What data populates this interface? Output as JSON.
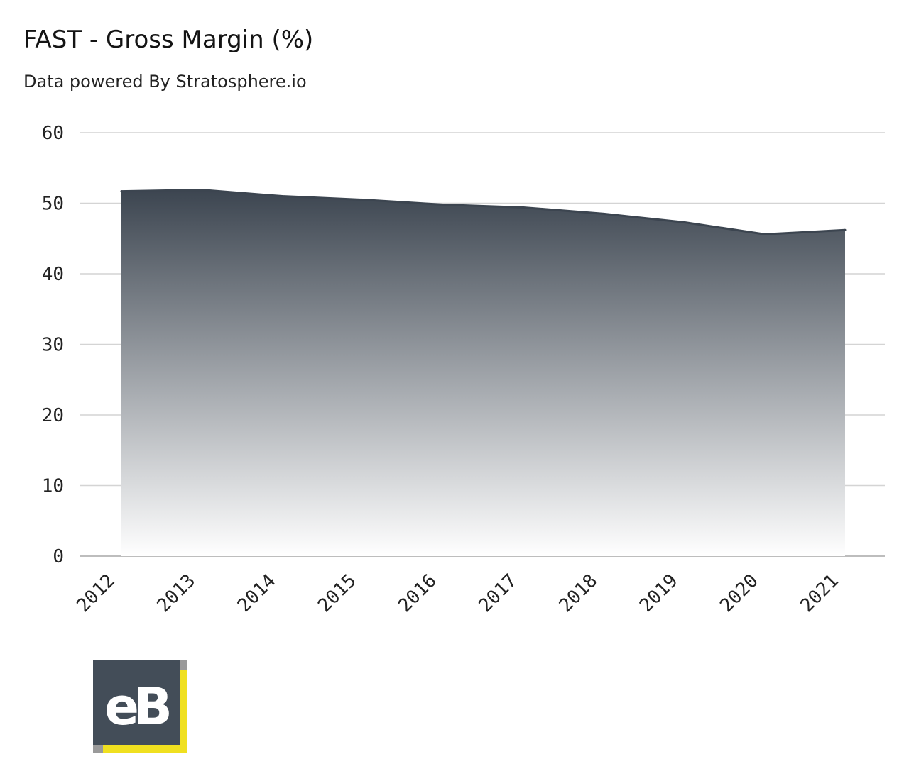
{
  "header": {
    "title": "FAST - Gross Margin (%)",
    "subtitle": "Data powered By Stratosphere.io"
  },
  "logo": {
    "text": "eB",
    "colors": {
      "background": "#434d58",
      "accent": "#f0e020",
      "frame": "#9a9a9a",
      "letter": "#ffffff"
    }
  },
  "chart_data": {
    "type": "area",
    "title": "FAST - Gross Margin (%)",
    "xlabel": "",
    "ylabel": "",
    "categories": [
      "2012",
      "2013",
      "2014",
      "2015",
      "2016",
      "2017",
      "2018",
      "2019",
      "2020",
      "2021"
    ],
    "values": [
      51.7,
      51.9,
      51.0,
      50.5,
      49.8,
      49.4,
      48.5,
      47.3,
      45.6,
      46.2
    ],
    "ylim": [
      0,
      60
    ],
    "yticks": [
      0,
      10,
      20,
      30,
      40,
      50,
      60
    ],
    "grid": true,
    "legend": "none",
    "colors": {
      "fill_top": "#3c4550",
      "fill_bottom": "#ffffff",
      "line": "#3c4550",
      "grid": "#d4d4d4",
      "axis": "#bdbdbd"
    }
  }
}
